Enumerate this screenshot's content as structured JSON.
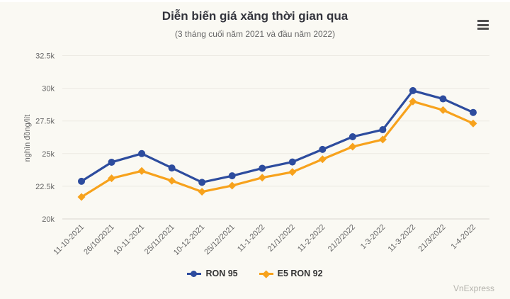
{
  "header": {
    "title": "Diễn biến giá xăng thời gian qua",
    "subtitle": "(3 tháng cuối năm 2021 và đầu năm 2022)"
  },
  "toolbar": {
    "menu_icon": "hamburger-icon"
  },
  "credits": {
    "label": "VnExpress"
  },
  "colors": {
    "background": "#faf9f3",
    "grid": "#eceae3",
    "axis_line": "#d9d7d0",
    "tick_text": "#666666",
    "title_text": "#33343c",
    "ron95_blue": "#2d4c9e",
    "e5ron92_orange": "#f7a21c"
  },
  "chart_data": {
    "type": "line",
    "title": "Diễn biến giá xăng thời gian qua",
    "subtitle": "(3 tháng cuối năm 2021 và đầu năm 2022)",
    "xlabel": "",
    "ylabel": "nghìn đồng/lít",
    "ylim": [
      20,
      32.5
    ],
    "grid": true,
    "legend_position": "bottom",
    "unit": "nghìn đồng/lít",
    "yticks": [
      {
        "value": 20,
        "label": "20k"
      },
      {
        "value": 22.5,
        "label": "22.5k"
      },
      {
        "value": 25,
        "label": "25k"
      },
      {
        "value": 27.5,
        "label": "27.5k"
      },
      {
        "value": 30,
        "label": "30k"
      },
      {
        "value": 32.5,
        "label": "32.5k"
      }
    ],
    "categories": [
      "11-10-2021",
      "26/10/2021",
      "10-11-2021",
      "25/11/2021",
      "10-12-2021",
      "25/12/2021",
      "11-1-2022",
      "21/1/2022",
      "11-2-2022",
      "21/2/2022",
      "1-3-2022",
      "11-3-2022",
      "21/3/2022",
      "1-4-2022"
    ],
    "series": [
      {
        "name": "RON 95",
        "color": "#2d4c9e",
        "marker": "circle",
        "values": [
          22.88,
          24.34,
          25.0,
          23.9,
          22.8,
          23.3,
          23.88,
          24.36,
          25.32,
          26.29,
          26.83,
          29.82,
          29.19,
          28.15
        ]
      },
      {
        "name": "E5 RON 92",
        "color": "#f7a21c",
        "marker": "diamond",
        "values": [
          21.68,
          23.11,
          23.67,
          22.92,
          22.08,
          22.55,
          23.16,
          23.59,
          24.57,
          25.53,
          26.08,
          28.99,
          28.33,
          27.31
        ]
      }
    ]
  }
}
